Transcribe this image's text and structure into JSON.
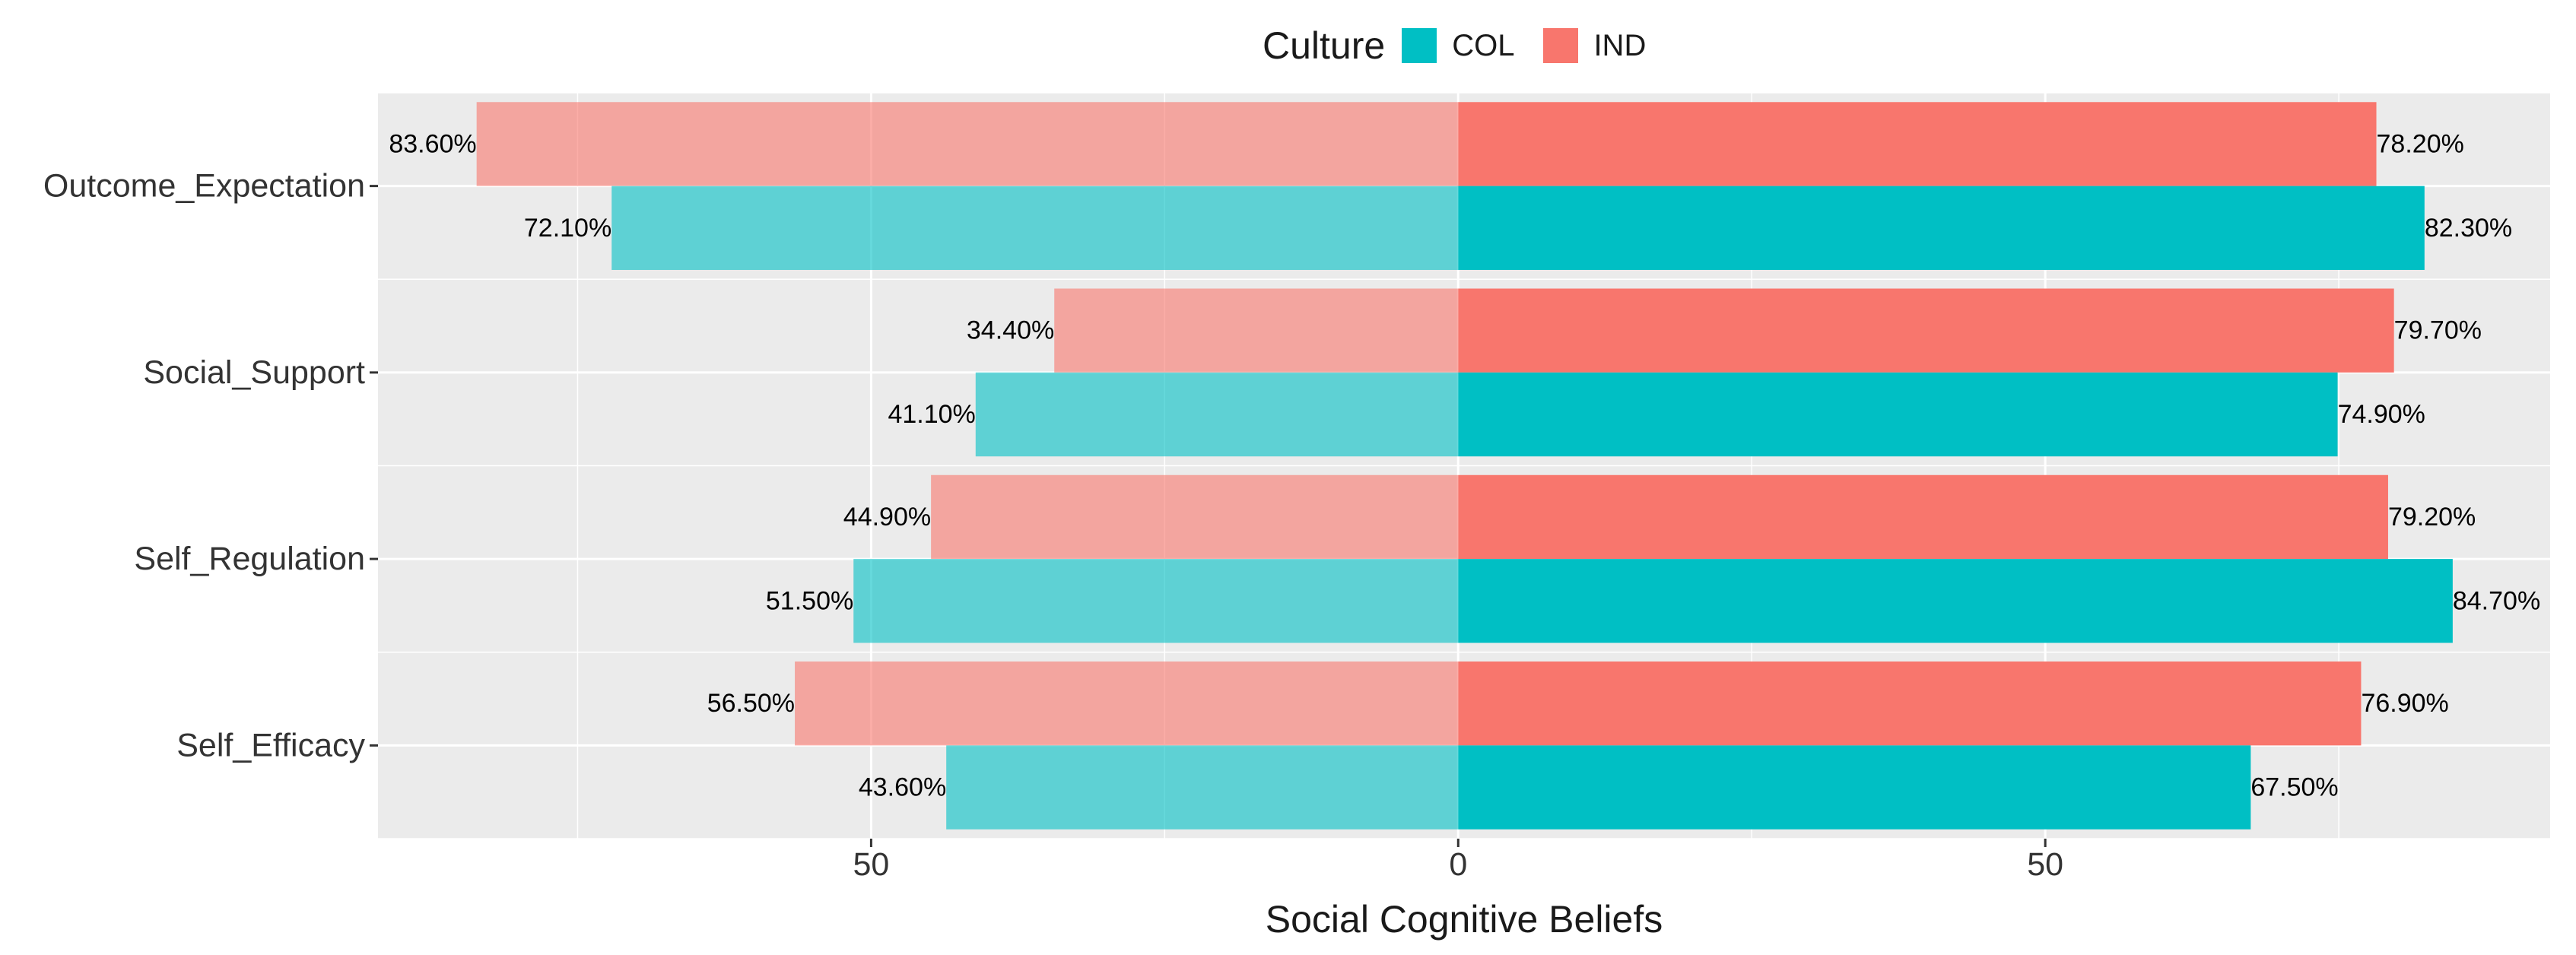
{
  "chart_data": {
    "type": "bar",
    "orientation": "horizontal-diverging",
    "xlabel": "Social Cognitive Beliefs",
    "ylabel": "",
    "xlim": [
      -92,
      93
    ],
    "x_ticks": [
      {
        "value": -50,
        "label": "50"
      },
      {
        "value": 0,
        "label": "0"
      },
      {
        "value": 50,
        "label": "50"
      }
    ],
    "categories": [
      "Outcome_Expectation",
      "Social_Support",
      "Self_Regulation",
      "Self_Efficacy"
    ],
    "legend": {
      "title": "Culture",
      "placement": "top",
      "entries": [
        {
          "key": "COL",
          "label": "COL",
          "color": "#00BFC4"
        },
        {
          "key": "IND",
          "label": "IND",
          "color": "#F8766D"
        }
      ]
    },
    "series": [
      {
        "name": "IND",
        "side": "left",
        "color": "#F8766D",
        "opacity": 0.6,
        "values": [
          83.6,
          34.4,
          44.9,
          56.5
        ],
        "labels": [
          "83.60%",
          "34.40%",
          "44.90%",
          "56.50%"
        ]
      },
      {
        "name": "COL",
        "side": "left",
        "color": "#00BFC4",
        "opacity": 0.6,
        "values": [
          72.1,
          41.1,
          51.5,
          43.6
        ],
        "labels": [
          "72.10%",
          "41.10%",
          "51.50%",
          "43.60%"
        ]
      },
      {
        "name": "IND",
        "side": "right",
        "color": "#F8766D",
        "opacity": 1,
        "values": [
          78.2,
          79.7,
          79.2,
          76.9
        ],
        "labels": [
          "78.20%",
          "79.70%",
          "79.20%",
          "76.90%"
        ]
      },
      {
        "name": "COL",
        "side": "right",
        "color": "#00BFC4",
        "opacity": 1,
        "values": [
          82.3,
          74.9,
          84.7,
          67.5
        ],
        "labels": [
          "82.30%",
          "74.90%",
          "84.70%",
          "67.50%"
        ]
      }
    ]
  }
}
